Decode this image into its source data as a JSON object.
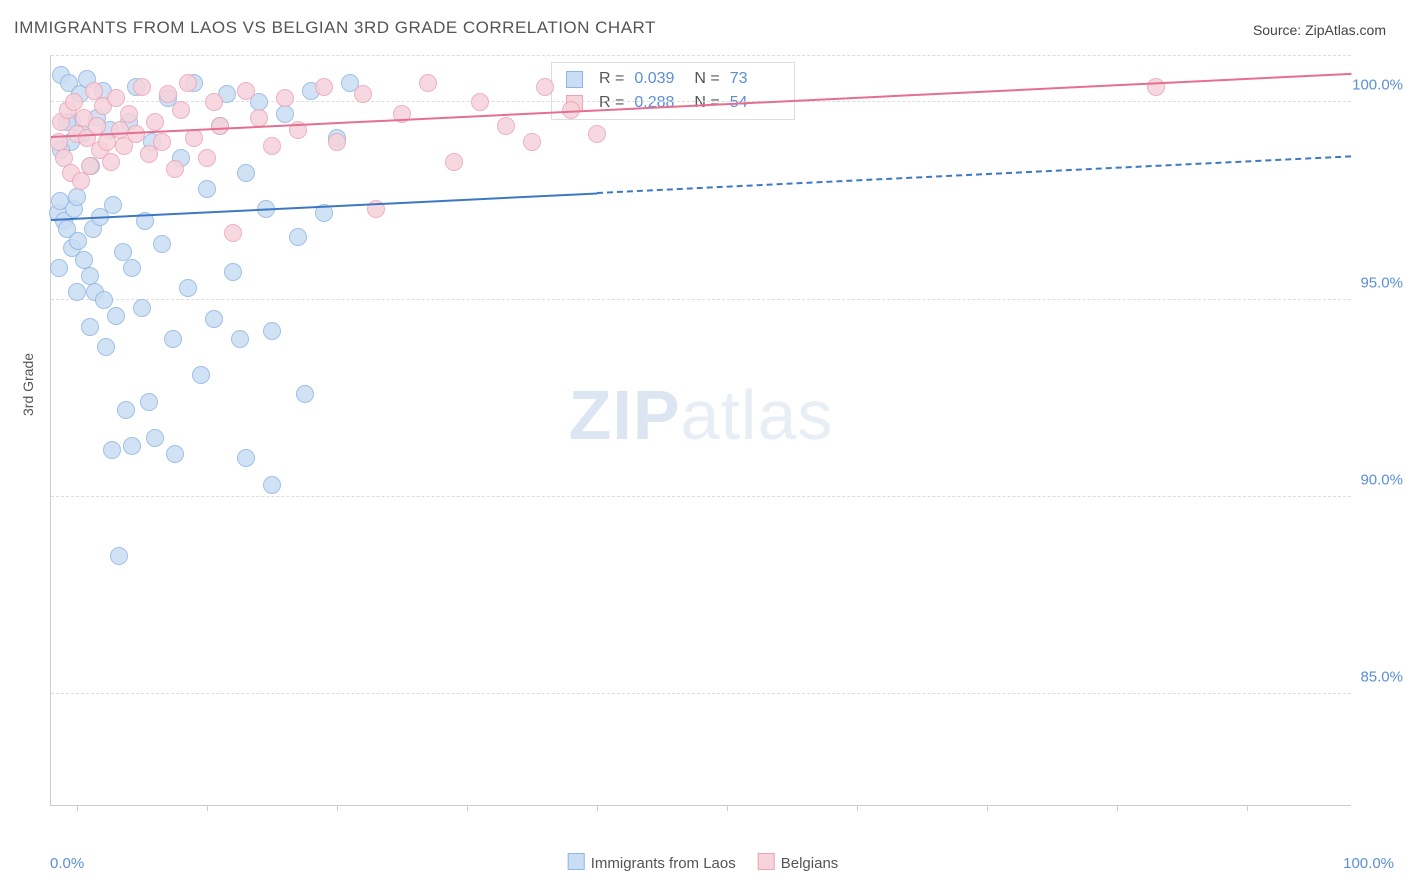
{
  "title": "IMMIGRANTS FROM LAOS VS BELGIAN 3RD GRADE CORRELATION CHART",
  "source": "Source: ZipAtlas.com",
  "y_axis_title": "3rd Grade",
  "watermark_bold": "ZIP",
  "watermark_light": "atlas",
  "chart": {
    "type": "scatter",
    "xlim": [
      0,
      100
    ],
    "ylim": [
      82.2,
      101.2
    ],
    "y_ticks": [
      85.0,
      90.0,
      95.0,
      100.0
    ],
    "y_tick_labels": [
      "85.0%",
      "90.0%",
      "95.0%",
      "100.0%"
    ],
    "x_tick_positions": [
      2,
      12,
      22,
      32,
      42,
      52,
      62,
      72,
      82,
      92
    ],
    "x_label_min": "0.0%",
    "x_label_max": "100.0%",
    "background_color": "#ffffff",
    "grid_color": "#dddddd",
    "series": [
      {
        "name": "Immigrants from Laos",
        "fill": "#c9ddf4",
        "stroke": "#8fb6e3",
        "line_color": "#3c78c3",
        "marker_radius": 8,
        "R": "0.039",
        "N": "73",
        "trend": {
          "x0": 0,
          "y0": 97.0,
          "x1": 100,
          "y1": 98.6,
          "solid_until_x": 42
        },
        "points": [
          [
            0.5,
            97.2
          ],
          [
            0.7,
            97.5
          ],
          [
            0.8,
            100.7
          ],
          [
            1.0,
            97.0
          ],
          [
            1.2,
            96.8
          ],
          [
            1.4,
            100.5
          ],
          [
            1.5,
            99.0
          ],
          [
            1.6,
            96.3
          ],
          [
            1.8,
            97.3
          ],
          [
            2.0,
            97.6
          ],
          [
            2.1,
            96.5
          ],
          [
            2.2,
            100.2
          ],
          [
            2.4,
            99.2
          ],
          [
            2.5,
            96.0
          ],
          [
            2.8,
            100.6
          ],
          [
            3.0,
            95.6
          ],
          [
            3.1,
            98.4
          ],
          [
            3.2,
            96.8
          ],
          [
            3.4,
            95.2
          ],
          [
            3.5,
            99.6
          ],
          [
            3.8,
            97.1
          ],
          [
            4.0,
            100.3
          ],
          [
            4.1,
            95.0
          ],
          [
            4.2,
            93.8
          ],
          [
            4.5,
            99.3
          ],
          [
            4.8,
            97.4
          ],
          [
            5.0,
            94.6
          ],
          [
            5.2,
            88.5
          ],
          [
            5.5,
            96.2
          ],
          [
            5.8,
            92.2
          ],
          [
            6.0,
            99.5
          ],
          [
            6.2,
            95.8
          ],
          [
            6.5,
            100.4
          ],
          [
            7.0,
            94.8
          ],
          [
            7.2,
            97.0
          ],
          [
            7.5,
            92.4
          ],
          [
            7.8,
            99.0
          ],
          [
            8.0,
            91.5
          ],
          [
            8.5,
            96.4
          ],
          [
            9.0,
            100.1
          ],
          [
            9.4,
            94.0
          ],
          [
            9.5,
            91.1
          ],
          [
            10.0,
            98.6
          ],
          [
            10.5,
            95.3
          ],
          [
            11.0,
            100.5
          ],
          [
            11.5,
            93.1
          ],
          [
            12.0,
            97.8
          ],
          [
            12.5,
            94.5
          ],
          [
            13.0,
            99.4
          ],
          [
            13.5,
            100.2
          ],
          [
            14.0,
            95.7
          ],
          [
            14.5,
            94.0
          ],
          [
            15.0,
            98.2
          ],
          [
            15.0,
            91.0
          ],
          [
            16.0,
            100.0
          ],
          [
            16.5,
            97.3
          ],
          [
            17.0,
            94.2
          ],
          [
            17.0,
            90.3
          ],
          [
            18.0,
            99.7
          ],
          [
            19.0,
            96.6
          ],
          [
            19.5,
            92.6
          ],
          [
            20.0,
            100.3
          ],
          [
            21.0,
            97.2
          ],
          [
            22.0,
            99.1
          ],
          [
            23.0,
            100.5
          ],
          [
            4.7,
            91.2
          ],
          [
            6.2,
            91.3
          ],
          [
            3.0,
            94.3
          ],
          [
            2.0,
            95.2
          ],
          [
            1.6,
            99.5
          ],
          [
            0.8,
            98.8
          ],
          [
            1.2,
            99.5
          ],
          [
            0.6,
            95.8
          ]
        ]
      },
      {
        "name": "Belgians",
        "fill": "#f6d2db",
        "stroke": "#eaa5b8",
        "line_color": "#e56f91",
        "marker_radius": 8,
        "R": "0.288",
        "N": "54",
        "trend": {
          "x0": 0,
          "y0": 99.1,
          "x1": 100,
          "y1": 100.7,
          "solid_until_x": 100
        },
        "points": [
          [
            0.6,
            99.0
          ],
          [
            0.8,
            99.5
          ],
          [
            1.0,
            98.6
          ],
          [
            1.3,
            99.8
          ],
          [
            1.5,
            98.2
          ],
          [
            1.8,
            100.0
          ],
          [
            2.0,
            99.2
          ],
          [
            2.3,
            98.0
          ],
          [
            2.5,
            99.6
          ],
          [
            2.8,
            99.1
          ],
          [
            3.0,
            98.4
          ],
          [
            3.3,
            100.3
          ],
          [
            3.5,
            99.4
          ],
          [
            3.8,
            98.8
          ],
          [
            4.0,
            99.9
          ],
          [
            4.3,
            99.0
          ],
          [
            4.6,
            98.5
          ],
          [
            5.0,
            100.1
          ],
          [
            5.3,
            99.3
          ],
          [
            5.6,
            98.9
          ],
          [
            6.0,
            99.7
          ],
          [
            6.5,
            99.2
          ],
          [
            7.0,
            100.4
          ],
          [
            7.5,
            98.7
          ],
          [
            8.0,
            99.5
          ],
          [
            8.5,
            99.0
          ],
          [
            9.0,
            100.2
          ],
          [
            9.5,
            98.3
          ],
          [
            10.0,
            99.8
          ],
          [
            10.5,
            100.5
          ],
          [
            11.0,
            99.1
          ],
          [
            12.0,
            98.6
          ],
          [
            12.5,
            100.0
          ],
          [
            13.0,
            99.4
          ],
          [
            14.0,
            96.7
          ],
          [
            15.0,
            100.3
          ],
          [
            16.0,
            99.6
          ],
          [
            17.0,
            98.9
          ],
          [
            18.0,
            100.1
          ],
          [
            19.0,
            99.3
          ],
          [
            21.0,
            100.4
          ],
          [
            22.0,
            99.0
          ],
          [
            24.0,
            100.2
          ],
          [
            25.0,
            97.3
          ],
          [
            27.0,
            99.7
          ],
          [
            29.0,
            100.5
          ],
          [
            31.0,
            98.5
          ],
          [
            33.0,
            100.0
          ],
          [
            35.0,
            99.4
          ],
          [
            37.0,
            99.0
          ],
          [
            38.0,
            100.4
          ],
          [
            40.0,
            99.8
          ],
          [
            42.0,
            99.2
          ],
          [
            85.0,
            100.4
          ]
        ]
      }
    ]
  },
  "bottom_legend": [
    {
      "label": "Immigrants from Laos",
      "fill": "#c9ddf4",
      "stroke": "#8fb6e3"
    },
    {
      "label": "Belgians",
      "fill": "#f6d2db",
      "stroke": "#eaa5b8"
    }
  ]
}
